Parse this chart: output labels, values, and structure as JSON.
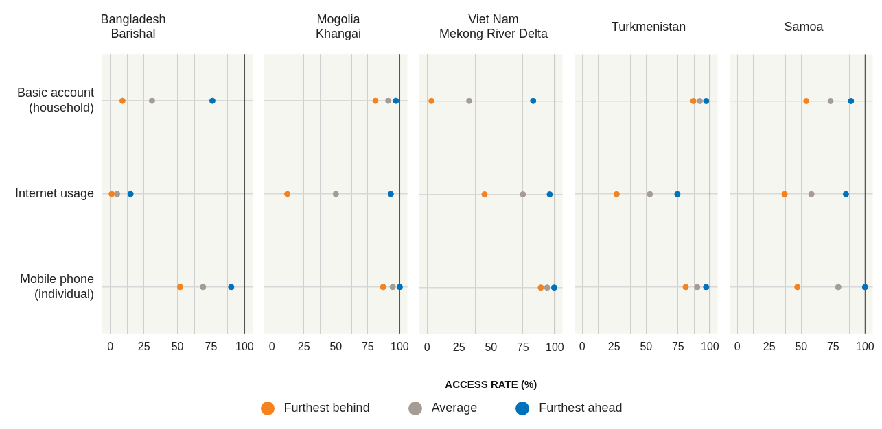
{
  "chart_data": [
    {
      "type": "scatter",
      "orientation": "horizontal",
      "title": "Bangladesh\nBarishal",
      "categories": [
        "Basic account\n(household)",
        "Internet usage",
        "Mobile phone\n(individual)"
      ],
      "xlim": [
        -6,
        106
      ],
      "xticks": [
        0,
        {
          "value": 12.5,
          "label": null
        },
        25,
        {
          "value": 37.5,
          "label": null
        },
        50,
        {
          "value": 62.5,
          "label": null
        },
        75,
        {
          "value": 87.5,
          "label": null
        },
        100
      ],
      "grid": true,
      "marker": "circle",
      "legend": "bottom",
      "ref_lines": [
        {
          "axis": "x",
          "value": 100,
          "color": "#555555"
        }
      ],
      "series": [
        {
          "name": "Furthest behind",
          "color": "#f58220",
          "values": [
            9,
            1,
            52
          ]
        },
        {
          "name": "Average",
          "color": "#a59d95",
          "values": [
            31,
            5,
            69
          ]
        },
        {
          "name": "Furthest ahead",
          "color": "#0072bc",
          "values": [
            76,
            15,
            90
          ]
        }
      ]
    },
    {
      "type": "scatter",
      "orientation": "horizontal",
      "title": "Mogolia\nKhangai",
      "xlim": [
        -6,
        106
      ],
      "xticks": [
        0,
        {
          "value": 12.5,
          "label": null
        },
        25,
        {
          "value": 37.5,
          "label": null
        },
        50,
        {
          "value": 62.5,
          "label": null
        },
        75,
        {
          "value": 87.5,
          "label": null
        },
        100
      ],
      "grid": true,
      "marker": "circle",
      "tick_labels": "x",
      "ref_lines": [
        {
          "axis": "x",
          "value": 100,
          "color": "#555555"
        }
      ],
      "series": [
        {
          "color": "#f58220",
          "values": [
            81,
            12,
            87
          ]
        },
        {
          "color": "#a59d95",
          "values": [
            91,
            50,
            94.5
          ]
        },
        {
          "color": "#0072bc",
          "values": [
            97,
            93,
            100
          ]
        }
      ]
    },
    {
      "type": "scatter",
      "orientation": "horizontal",
      "title": "Viet Nam\nMekong River Delta",
      "xlabel": "ACCESS RATE (%)",
      "xlim": [
        -6,
        106
      ],
      "xticks": [
        0,
        {
          "value": 12.5,
          "label": null
        },
        25,
        {
          "value": 37.5,
          "label": null
        },
        50,
        {
          "value": 62.5,
          "label": null
        },
        75,
        {
          "value": 87.5,
          "label": null
        },
        100
      ],
      "grid": true,
      "marker": "circle",
      "tick_labels": "x",
      "ref_lines": [
        {
          "axis": "x",
          "value": 100,
          "color": "#555555"
        }
      ],
      "series": [
        {
          "color": "#f58220",
          "values": [
            3.5,
            45,
            89
          ]
        },
        {
          "color": "#a59d95",
          "values": [
            33,
            75,
            94
          ]
        },
        {
          "color": "#0072bc",
          "values": [
            83,
            96,
            99.5
          ]
        }
      ]
    },
    {
      "type": "scatter",
      "orientation": "horizontal",
      "title": "Turkmenistan",
      "xlim": [
        -6,
        106
      ],
      "xticks": [
        0,
        {
          "value": 12.5,
          "label": null
        },
        25,
        {
          "value": 37.5,
          "label": null
        },
        50,
        {
          "value": 62.5,
          "label": null
        },
        75,
        {
          "value": 87.5,
          "label": null
        },
        100
      ],
      "grid": true,
      "marker": "circle",
      "tick_labels": "x",
      "ref_lines": [
        {
          "axis": "x",
          "value": 100,
          "color": "#555555"
        }
      ],
      "series": [
        {
          "color": "#f58220",
          "values": [
            87,
            27,
            81
          ]
        },
        {
          "color": "#a59d95",
          "values": [
            92,
            53,
            90
          ]
        },
        {
          "color": "#0072bc",
          "values": [
            97,
            74.5,
            97
          ]
        }
      ]
    },
    {
      "type": "scatter",
      "orientation": "horizontal",
      "title": "Samoa",
      "xlim": [
        -6,
        106
      ],
      "xticks": [
        0,
        {
          "value": 12.5,
          "label": null
        },
        25,
        {
          "value": 37.5,
          "label": null
        },
        50,
        {
          "value": 62.5,
          "label": null
        },
        75,
        {
          "value": 87.5,
          "label": null
        },
        100
      ],
      "grid": true,
      "marker": "circle",
      "tick_labels": "x",
      "ref_lines": [
        {
          "axis": "x",
          "value": 100,
          "color": "#555555"
        }
      ],
      "series": [
        {
          "color": "#f58220",
          "values": [
            54,
            37,
            47
          ]
        },
        {
          "color": "#a59d95",
          "values": [
            73,
            58,
            79
          ]
        },
        {
          "color": "#0072bc",
          "values": [
            89,
            85,
            100
          ]
        }
      ]
    }
  ]
}
